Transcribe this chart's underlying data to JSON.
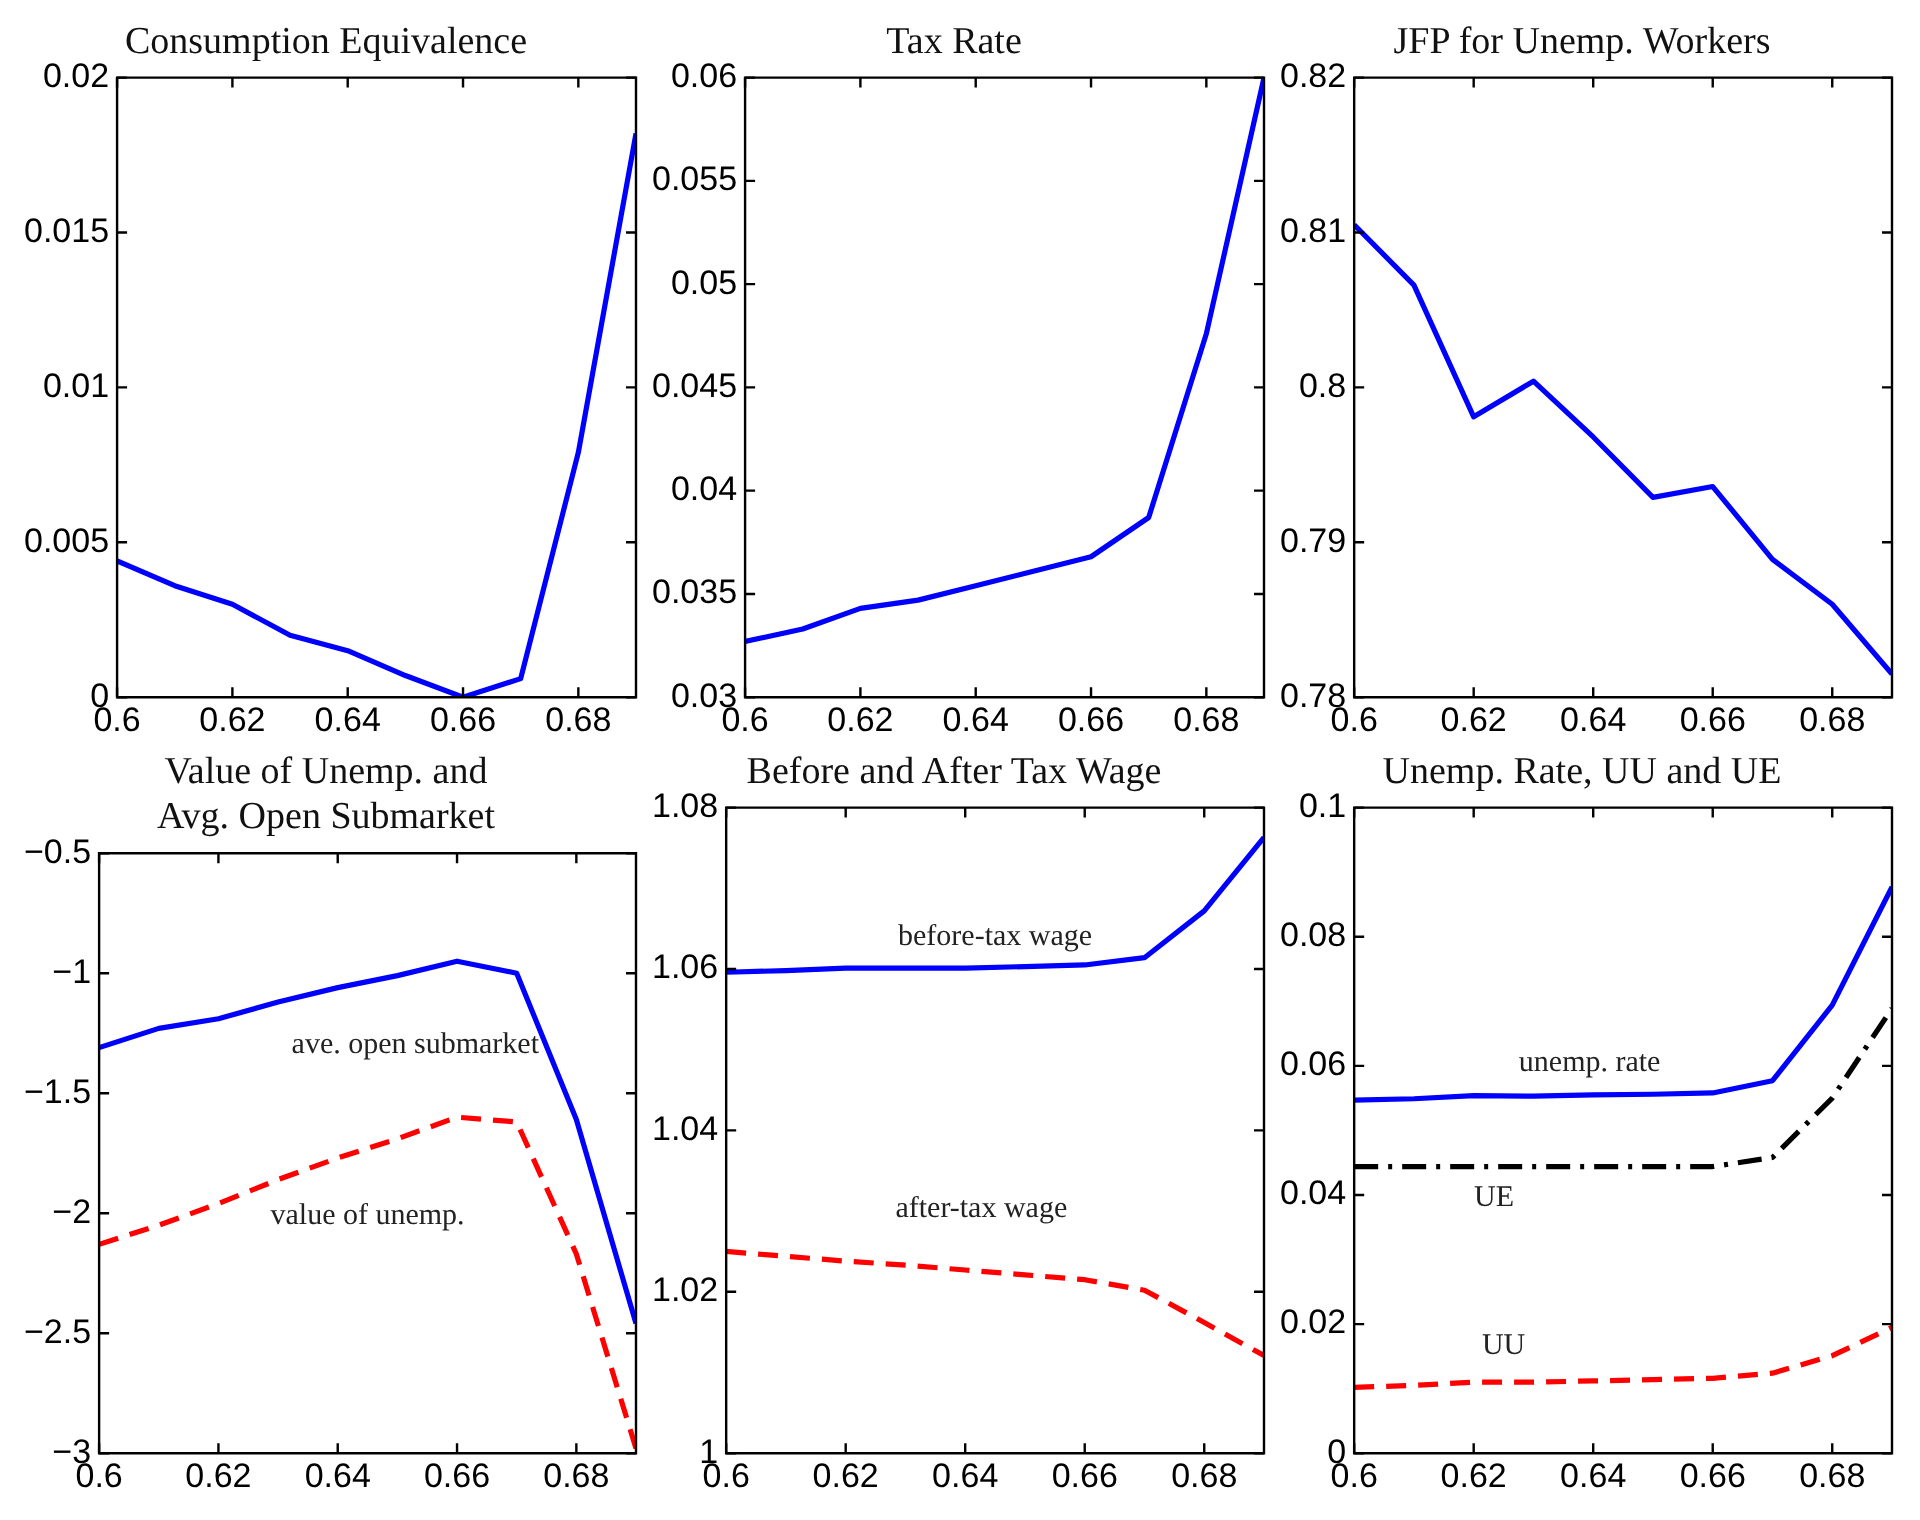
{
  "chart_data": [
    {
      "type": "line",
      "title": "Consumption Equivalence",
      "x": [
        0.6,
        0.61,
        0.62,
        0.63,
        0.64,
        0.65,
        0.66,
        0.67,
        0.68,
        0.69
      ],
      "xlim": [
        0.6,
        0.69
      ],
      "xticks": [
        0.6,
        0.62,
        0.64,
        0.66,
        0.68
      ],
      "ylim": [
        0,
        0.02
      ],
      "yticks": [
        0,
        0.005,
        0.01,
        0.015,
        0.02
      ],
      "grid": false,
      "legend": false,
      "series": [
        {
          "color": "#0000ff",
          "line_style": "solid",
          "values": [
            0.0044,
            0.0036,
            0.003,
            0.002,
            0.0015,
            0.0007,
            0,
            0.0006,
            0.0079,
            0.0182
          ]
        }
      ]
    },
    {
      "type": "line",
      "title": "Tax Rate",
      "x": [
        0.6,
        0.61,
        0.62,
        0.63,
        0.64,
        0.65,
        0.66,
        0.67,
        0.68,
        0.69
      ],
      "xlim": [
        0.6,
        0.69
      ],
      "xticks": [
        0.6,
        0.62,
        0.64,
        0.66,
        0.68
      ],
      "ylim": [
        0.03,
        0.06
      ],
      "yticks": [
        0.03,
        0.035,
        0.04,
        0.045,
        0.05,
        0.055,
        0.06
      ],
      "grid": false,
      "legend": false,
      "series": [
        {
          "color": "#0000ff",
          "line_style": "solid",
          "values": [
            0.0327,
            0.0333,
            0.0343,
            0.0347,
            0.0354,
            0.0361,
            0.0368,
            0.0387,
            0.0476,
            0.06
          ]
        }
      ]
    },
    {
      "type": "line",
      "title": "JFP for Unemp. Workers",
      "x": [
        0.6,
        0.61,
        0.62,
        0.63,
        0.64,
        0.65,
        0.66,
        0.67,
        0.68,
        0.69
      ],
      "xlim": [
        0.6,
        0.69
      ],
      "xticks": [
        0.6,
        0.62,
        0.64,
        0.66,
        0.68
      ],
      "ylim": [
        0.78,
        0.82
      ],
      "yticks": [
        0.78,
        0.79,
        0.8,
        0.81,
        0.82
      ],
      "grid": false,
      "legend": false,
      "series": [
        {
          "color": "#0000ff",
          "line_style": "solid",
          "values": [
            0.8105,
            0.8066,
            0.7981,
            0.8004,
            0.7968,
            0.7929,
            0.7936,
            0.7889,
            0.786,
            0.7815
          ]
        }
      ]
    },
    {
      "type": "line",
      "title": "Value of Unemp. and\nAvg. Open Submarket",
      "x": [
        0.6,
        0.61,
        0.62,
        0.63,
        0.64,
        0.65,
        0.66,
        0.67,
        0.68,
        0.69
      ],
      "xlim": [
        0.6,
        0.69
      ],
      "xticks": [
        0.6,
        0.62,
        0.64,
        0.66,
        0.68
      ],
      "ylim": [
        -3,
        -0.5
      ],
      "yticks": [
        {
          "value": -3,
          "label": "−3"
        },
        {
          "value": -2.5,
          "label": "−2.5"
        },
        {
          "value": -2,
          "label": "−2"
        },
        {
          "value": -1.5,
          "label": "−1.5"
        },
        {
          "value": -1,
          "label": "−1"
        },
        {
          "value": -0.5,
          "label": "−0.5"
        }
      ],
      "grid": false,
      "legend": false,
      "series": [
        {
          "name": "ave. open submarket",
          "color": "#0000ff",
          "line_style": "solid",
          "values": [
            -1.31,
            -1.23,
            -1.19,
            -1.12,
            -1.06,
            -1.01,
            -0.95,
            -1.0,
            -1.61,
            -2.46
          ]
        },
        {
          "name": "value of unemp.",
          "color": "#ff0000",
          "line_style": "dashed",
          "values": [
            -2.13,
            -2.05,
            -1.96,
            -1.86,
            -1.77,
            -1.69,
            -1.6,
            -1.62,
            -2.17,
            -2.98
          ]
        }
      ]
    },
    {
      "type": "line",
      "title": "Before and After Tax Wage",
      "x": [
        0.6,
        0.61,
        0.62,
        0.63,
        0.64,
        0.65,
        0.66,
        0.67,
        0.68,
        0.69
      ],
      "xlim": [
        0.6,
        0.69
      ],
      "xticks": [
        0.6,
        0.62,
        0.64,
        0.66,
        0.68
      ],
      "ylim": [
        1,
        1.08
      ],
      "yticks": [
        1,
        1.02,
        1.04,
        1.06,
        1.08
      ],
      "grid": false,
      "legend": false,
      "series": [
        {
          "name": "before-tax wage",
          "color": "#0000ff",
          "line_style": "solid",
          "values": [
            1.0596,
            1.0598,
            1.0601,
            1.0601,
            1.0601,
            1.0603,
            1.0605,
            1.0614,
            1.0672,
            1.0763
          ]
        },
        {
          "name": "after-tax wage",
          "color": "#ff0000",
          "line_style": "dashed",
          "values": [
            1.025,
            1.0244,
            1.0238,
            1.0233,
            1.0227,
            1.0221,
            1.0215,
            1.0202,
            1.0162,
            1.0121
          ]
        }
      ]
    },
    {
      "type": "line",
      "title": "Unemp. Rate, UU and UE",
      "x": [
        0.6,
        0.61,
        0.62,
        0.63,
        0.64,
        0.65,
        0.66,
        0.67,
        0.68,
        0.69
      ],
      "xlim": [
        0.6,
        0.69
      ],
      "xticks": [
        0.6,
        0.62,
        0.64,
        0.66,
        0.68
      ],
      "ylim": [
        0,
        0.1
      ],
      "yticks": [
        0,
        0.02,
        0.04,
        0.06,
        0.08,
        0.1
      ],
      "grid": false,
      "legend": false,
      "series": [
        {
          "name": "unemp. rate",
          "color": "#0000ff",
          "line_style": "solid",
          "values": [
            0.0547,
            0.0549,
            0.0554,
            0.0553,
            0.0555,
            0.0556,
            0.0558,
            0.0577,
            0.0694,
            0.0877
          ]
        },
        {
          "name": "UE",
          "color": "#000000",
          "line_style": "dashdot",
          "values": [
            0.0444,
            0.0444,
            0.0444,
            0.0444,
            0.0444,
            0.0444,
            0.0444,
            0.0458,
            0.055,
            0.0689
          ]
        },
        {
          "name": "UU",
          "color": "#ff0000",
          "line_style": "dashed",
          "values": [
            0.0102,
            0.0105,
            0.011,
            0.011,
            0.0112,
            0.0114,
            0.0116,
            0.0124,
            0.0151,
            0.0195
          ]
        }
      ]
    }
  ]
}
